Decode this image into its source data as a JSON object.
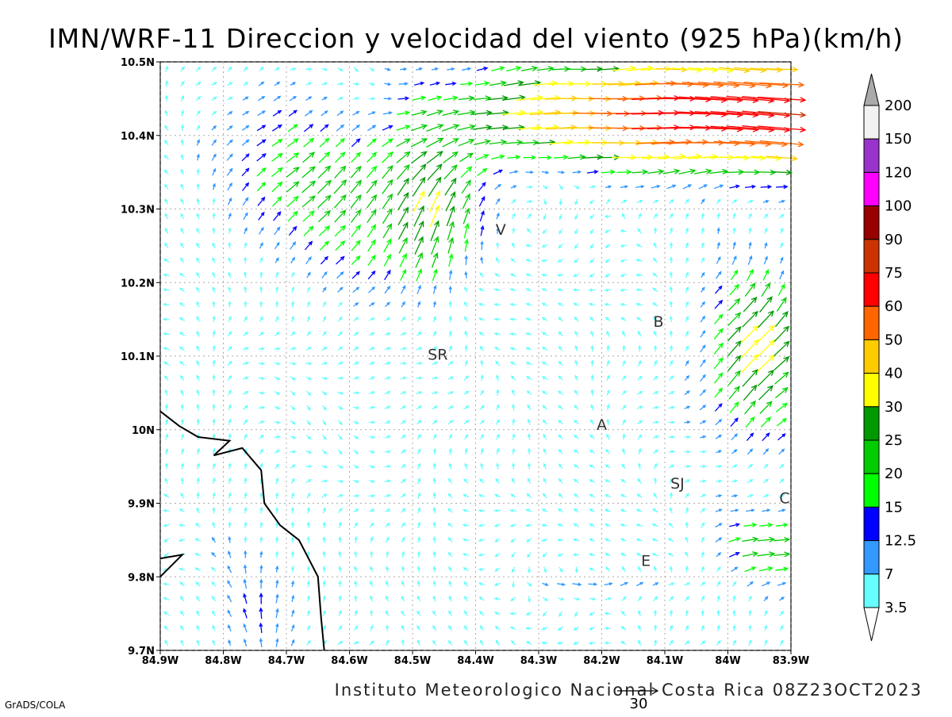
{
  "title": "IMN/WRF-11 Direccion y velocidad del viento (925 hPa)(km/h)",
  "footer": "Instituto Meteorologico Nacional Costa Rica 08Z23OCT2023",
  "software_label": "GrADS/COLA",
  "reference_vector": {
    "label": "30",
    "value": 30
  },
  "axes": {
    "x_ticks": [
      "84.9W",
      "84.8W",
      "84.7W",
      "84.6W",
      "84.5W",
      "84.4W",
      "84.3W",
      "84.2W",
      "84.1W",
      "84W",
      "83.9W"
    ],
    "y_ticks": [
      "10.5N",
      "10.4N",
      "10.3N",
      "10.2N",
      "10.1N",
      "10N",
      "9.9N",
      "9.8N",
      "9.7N"
    ],
    "x_range": [
      -84.9,
      -83.9
    ],
    "y_range": [
      9.7,
      10.5
    ]
  },
  "cities": [
    {
      "label": "V",
      "lon": -84.36,
      "lat": 10.265
    },
    {
      "label": "B",
      "lon": -84.11,
      "lat": 10.14
    },
    {
      "label": "SR",
      "lon": -84.46,
      "lat": 10.095
    },
    {
      "label": "A",
      "lon": -84.2,
      "lat": 10.0
    },
    {
      "label": "SJ",
      "lon": -84.08,
      "lat": 9.92
    },
    {
      "label": "C",
      "lon": -83.91,
      "lat": 9.9
    },
    {
      "label": "E",
      "lon": -84.13,
      "lat": 9.815
    }
  ],
  "colorbar": {
    "levels": [
      "200",
      "150",
      "120",
      "100",
      "90",
      "75",
      "60",
      "50",
      "40",
      "30",
      "25",
      "20",
      "15",
      "12.5",
      "7",
      "3.5"
    ],
    "colors": [
      "#f2f2f2",
      "#9933cc",
      "#ff00ff",
      "#990000",
      "#cc3300",
      "#ff0000",
      "#ff6600",
      "#ffcc00",
      "#ffff00",
      "#009900",
      "#00cc00",
      "#00ff00",
      "#0000ff",
      "#3399ff",
      "#66ffff"
    ],
    "overflow_color": "#aaaaaa"
  },
  "chart_data": {
    "type": "vector-field",
    "title": "IMN/WRF-11 Direccion y velocidad del viento (925 hPa)(km/h)",
    "units": "km/h",
    "x_range": [
      -84.9,
      -83.9
    ],
    "y_range": [
      9.7,
      10.5
    ],
    "pattern": "strong easterly-to-westerly jet along northern edge (60-75 km/h), moderate NE flow 15-30 km/h in NW sector, weak variable winds under 7 km/h over central region, 20-40 km/h convergent flow near C in the east"
  }
}
